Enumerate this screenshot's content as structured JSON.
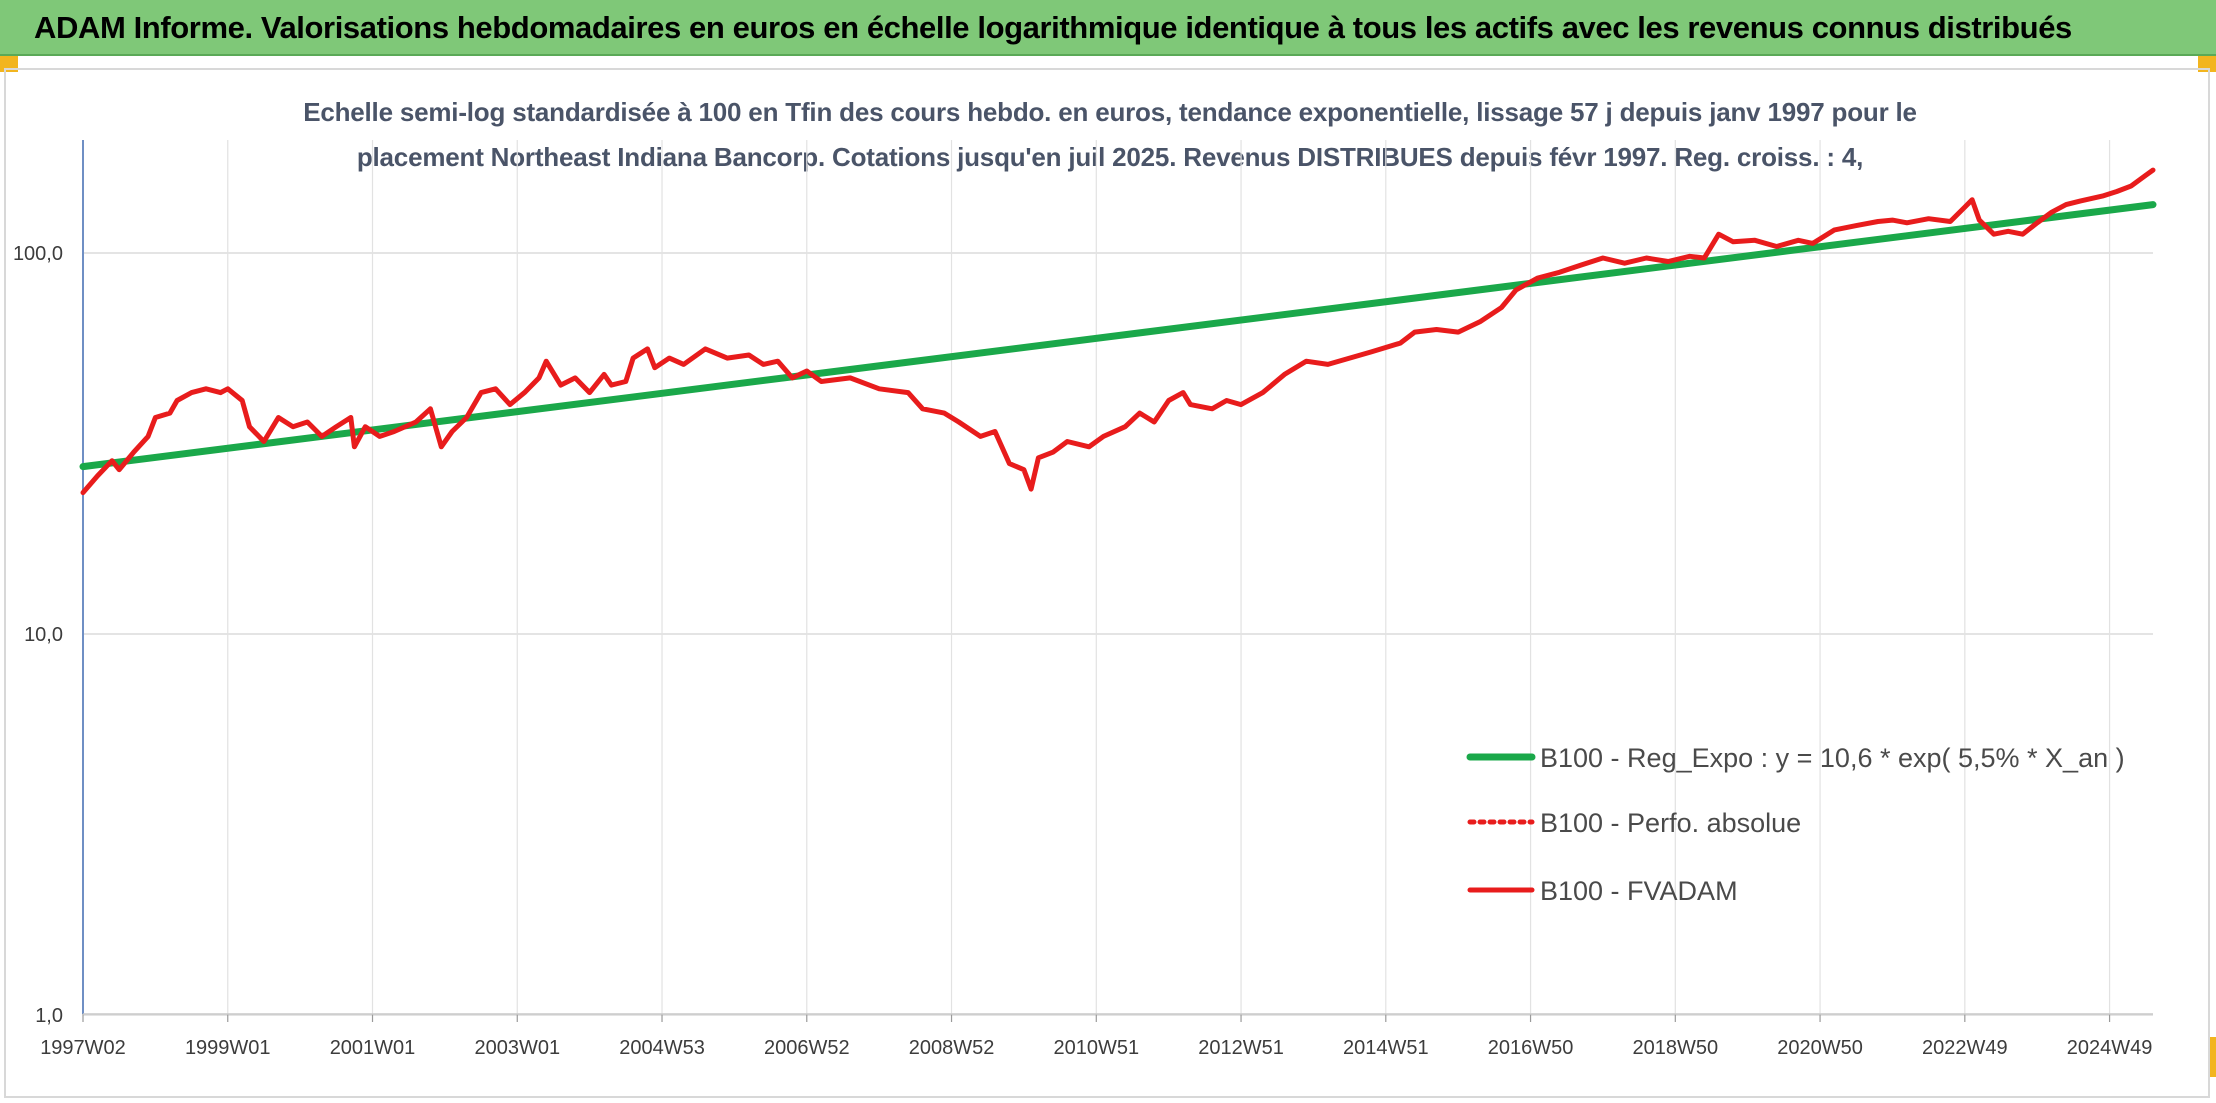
{
  "header": {
    "title": "ADAM Informe. Valorisations hebdomadaires en euros en échelle logarithmique identique à tous les actifs avec les revenus connus distribués"
  },
  "chart_data": {
    "type": "line",
    "title_line1": "Echelle semi-log standardisée à 100 en Tfin des cours hebdo. en euros, tendance exponentielle, lissage 57 j depuis janv 1997 pour le",
    "title_line2": "placement Northeast Indiana Bancorp. Cotations jusqu'en juil 2025. Revenus DISTRIBUES depuis févr 1997. Reg. croiss. : 4,",
    "y_scale": "log",
    "ylim": [
      1,
      200
    ],
    "xlim": [
      1997.0,
      2025.6
    ],
    "grid": true,
    "legend_position": "bottom-right",
    "y_ticks": [
      {
        "value": 100,
        "label": "100,0"
      },
      {
        "value": 10,
        "label": "10,0"
      },
      {
        "value": 1,
        "label": "1,0"
      }
    ],
    "x_ticks": [
      {
        "x": 1997.0,
        "label": "1997W02"
      },
      {
        "x": 1999.0,
        "label": "1999W01"
      },
      {
        "x": 2001.0,
        "label": "2001W01"
      },
      {
        "x": 2003.0,
        "label": "2003W01"
      },
      {
        "x": 2005.0,
        "label": "2004W53"
      },
      {
        "x": 2007.0,
        "label": "2006W52"
      },
      {
        "x": 2009.0,
        "label": "2008W52"
      },
      {
        "x": 2011.0,
        "label": "2010W51"
      },
      {
        "x": 2013.0,
        "label": "2012W51"
      },
      {
        "x": 2015.0,
        "label": "2014W51"
      },
      {
        "x": 2017.0,
        "label": "2016W50"
      },
      {
        "x": 2019.0,
        "label": "2018W50"
      },
      {
        "x": 2021.0,
        "label": "2020W50"
      },
      {
        "x": 2023.0,
        "label": "2022W49"
      },
      {
        "x": 2025.0,
        "label": "2024W49"
      }
    ],
    "series": [
      {
        "name": "B100 - Reg_Expo : y = 10,6 * exp( 5,5% *  X_an )",
        "color": "#1aa84a",
        "style": "solid",
        "points": [
          [
            1997.0,
            27.5
          ],
          [
            2025.6,
            134
          ]
        ]
      },
      {
        "name": "B100 - Perfo. absolue",
        "color": "#e81c1c",
        "style": "dotted",
        "points": []
      },
      {
        "name": "B100 - FVADAM",
        "color": "#e81c1c",
        "style": "solid",
        "points": [
          [
            1997.0,
            23.5
          ],
          [
            1997.2,
            26
          ],
          [
            1997.4,
            28.5
          ],
          [
            1997.5,
            27
          ],
          [
            1997.7,
            30
          ],
          [
            1997.9,
            33
          ],
          [
            1998.0,
            37
          ],
          [
            1998.2,
            38
          ],
          [
            1998.3,
            41
          ],
          [
            1998.5,
            43
          ],
          [
            1998.7,
            44
          ],
          [
            1998.9,
            43
          ],
          [
            1999.0,
            44
          ],
          [
            1999.2,
            41
          ],
          [
            1999.3,
            35
          ],
          [
            1999.5,
            32
          ],
          [
            1999.7,
            37
          ],
          [
            1999.9,
            35
          ],
          [
            2000.1,
            36
          ],
          [
            2000.3,
            33
          ],
          [
            2000.5,
            35
          ],
          [
            2000.7,
            37
          ],
          [
            2000.75,
            31
          ],
          [
            2000.9,
            35
          ],
          [
            2001.1,
            33
          ],
          [
            2001.3,
            34
          ],
          [
            2001.6,
            36
          ],
          [
            2001.8,
            39
          ],
          [
            2001.95,
            31
          ],
          [
            2002.1,
            34
          ],
          [
            2002.3,
            37
          ],
          [
            2002.5,
            43
          ],
          [
            2002.7,
            44
          ],
          [
            2002.9,
            40
          ],
          [
            2003.1,
            43
          ],
          [
            2003.3,
            47
          ],
          [
            2003.4,
            52
          ],
          [
            2003.6,
            45
          ],
          [
            2003.8,
            47
          ],
          [
            2004.0,
            43
          ],
          [
            2004.2,
            48
          ],
          [
            2004.3,
            45
          ],
          [
            2004.5,
            46
          ],
          [
            2004.6,
            53
          ],
          [
            2004.8,
            56
          ],
          [
            2004.9,
            50
          ],
          [
            2005.1,
            53
          ],
          [
            2005.3,
            51
          ],
          [
            2005.6,
            56
          ],
          [
            2005.9,
            53
          ],
          [
            2006.2,
            54
          ],
          [
            2006.4,
            51
          ],
          [
            2006.6,
            52
          ],
          [
            2006.8,
            47
          ],
          [
            2007.0,
            49
          ],
          [
            2007.2,
            46
          ],
          [
            2007.6,
            47
          ],
          [
            2008.0,
            44
          ],
          [
            2008.4,
            43
          ],
          [
            2008.6,
            39
          ],
          [
            2008.9,
            38
          ],
          [
            2009.1,
            36
          ],
          [
            2009.4,
            33
          ],
          [
            2009.6,
            34
          ],
          [
            2009.8,
            28
          ],
          [
            2010.0,
            27
          ],
          [
            2010.1,
            24
          ],
          [
            2010.2,
            29
          ],
          [
            2010.4,
            30
          ],
          [
            2010.6,
            32
          ],
          [
            2010.9,
            31
          ],
          [
            2011.1,
            33
          ],
          [
            2011.4,
            35
          ],
          [
            2011.6,
            38
          ],
          [
            2011.8,
            36
          ],
          [
            2012.0,
            41
          ],
          [
            2012.2,
            43
          ],
          [
            2012.3,
            40
          ],
          [
            2012.6,
            39
          ],
          [
            2012.8,
            41
          ],
          [
            2013.0,
            40
          ],
          [
            2013.3,
            43
          ],
          [
            2013.6,
            48
          ],
          [
            2013.9,
            52
          ],
          [
            2014.2,
            51
          ],
          [
            2014.5,
            53
          ],
          [
            2014.8,
            55
          ],
          [
            2015.2,
            58
          ],
          [
            2015.4,
            62
          ],
          [
            2015.7,
            63
          ],
          [
            2016.0,
            62
          ],
          [
            2016.3,
            66
          ],
          [
            2016.6,
            72
          ],
          [
            2016.8,
            80
          ],
          [
            2017.1,
            86
          ],
          [
            2017.4,
            89
          ],
          [
            2017.7,
            93
          ],
          [
            2018.0,
            97
          ],
          [
            2018.3,
            94
          ],
          [
            2018.6,
            97
          ],
          [
            2018.9,
            95
          ],
          [
            2019.2,
            98
          ],
          [
            2019.4,
            97
          ],
          [
            2019.6,
            112
          ],
          [
            2019.8,
            107
          ],
          [
            2020.1,
            108
          ],
          [
            2020.4,
            104
          ],
          [
            2020.7,
            108
          ],
          [
            2020.9,
            106
          ],
          [
            2021.2,
            115
          ],
          [
            2021.5,
            118
          ],
          [
            2021.8,
            121
          ],
          [
            2022.0,
            122
          ],
          [
            2022.2,
            120
          ],
          [
            2022.5,
            123
          ],
          [
            2022.8,
            121
          ],
          [
            2023.0,
            132
          ],
          [
            2023.1,
            138
          ],
          [
            2023.2,
            122
          ],
          [
            2023.4,
            112
          ],
          [
            2023.6,
            114
          ],
          [
            2023.8,
            112
          ],
          [
            2024.0,
            120
          ],
          [
            2024.2,
            128
          ],
          [
            2024.4,
            134
          ],
          [
            2024.6,
            137
          ],
          [
            2024.9,
            141
          ],
          [
            2025.1,
            145
          ],
          [
            2025.3,
            150
          ],
          [
            2025.5,
            160
          ],
          [
            2025.6,
            165
          ]
        ]
      }
    ]
  }
}
